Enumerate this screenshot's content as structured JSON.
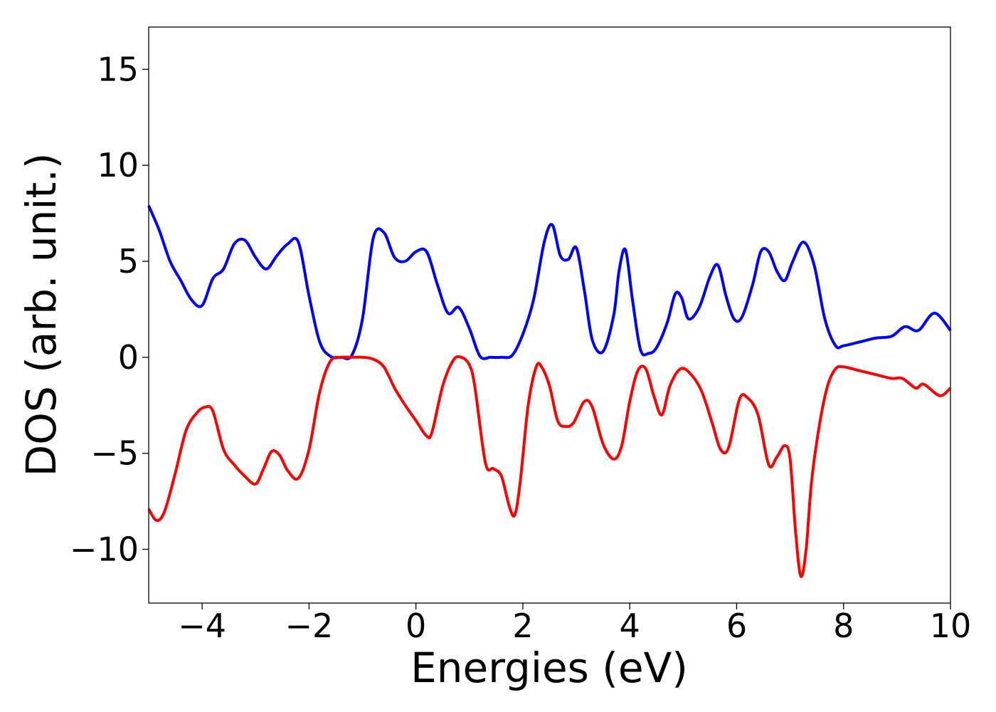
{
  "chart_data": {
    "type": "line",
    "title": "",
    "xlabel": "Energies (eV)",
    "ylabel": "DOS (arb. unit.)",
    "xlim": [
      -5,
      10
    ],
    "ylim": [
      -12.8,
      17.2
    ],
    "xticks": [
      -4,
      -2,
      0,
      2,
      4,
      6,
      8,
      10
    ],
    "yticks": [
      -10,
      -5,
      0,
      5,
      10,
      15
    ],
    "xtick_labels": [
      "−4",
      "−2",
      "0",
      "2",
      "4",
      "6",
      "8",
      "10"
    ],
    "ytick_labels": [
      "−10",
      "−5",
      "0",
      "5",
      "10",
      "15"
    ],
    "grid": false,
    "legend": "none",
    "series": [
      {
        "color": "#0000ff",
        "x": [
          -5.0,
          -4.8,
          -4.6,
          -4.4,
          -4.2,
          -4.0,
          -3.8,
          -3.6,
          -3.4,
          -3.2,
          -3.0,
          -2.8,
          -2.6,
          -2.4,
          -2.2,
          -2.0,
          -1.8,
          -1.6,
          -1.4,
          -1.2,
          -1.0,
          -0.8,
          -0.6,
          -0.4,
          -0.2,
          0.0,
          0.2,
          0.4,
          0.6,
          0.8,
          1.0,
          1.2,
          1.4,
          1.6,
          1.8,
          2.0,
          2.2,
          2.4,
          2.55,
          2.7,
          2.85,
          3.0,
          3.15,
          3.3,
          3.5,
          3.7,
          3.8,
          3.92,
          4.05,
          4.2,
          4.35,
          4.5,
          4.7,
          4.85,
          4.97,
          5.1,
          5.3,
          5.5,
          5.65,
          5.8,
          5.95,
          6.1,
          6.3,
          6.45,
          6.6,
          6.75,
          6.9,
          7.05,
          7.25,
          7.45,
          7.65,
          7.85,
          8.0,
          8.3,
          8.6,
          8.9,
          9.15,
          9.4,
          9.7,
          10.0
        ],
        "y": [
          7.9,
          6.6,
          5.0,
          4.0,
          3.0,
          2.7,
          4.1,
          4.6,
          5.9,
          6.1,
          5.2,
          4.6,
          5.3,
          5.9,
          6.0,
          3.2,
          0.8,
          0.05,
          0.0,
          0.1,
          2.0,
          6.2,
          6.5,
          5.2,
          5.0,
          5.5,
          5.5,
          3.8,
          2.3,
          2.6,
          1.5,
          0.05,
          0.0,
          0.0,
          0.1,
          1.2,
          3.0,
          6.0,
          6.9,
          5.3,
          5.1,
          5.7,
          3.5,
          0.9,
          0.3,
          2.2,
          4.5,
          5.6,
          3.0,
          0.4,
          0.2,
          0.5,
          1.8,
          3.3,
          3.1,
          2.0,
          2.6,
          4.2,
          4.8,
          3.2,
          2.0,
          2.1,
          3.8,
          5.5,
          5.5,
          4.5,
          4.0,
          5.0,
          6.0,
          4.8,
          2.0,
          0.6,
          0.6,
          0.8,
          1.0,
          1.1,
          1.6,
          1.4,
          2.3,
          1.4
        ]
      },
      {
        "color": "#ff0000",
        "x": [
          -5.0,
          -4.85,
          -4.7,
          -4.5,
          -4.3,
          -4.1,
          -3.95,
          -3.8,
          -3.6,
          -3.4,
          -3.2,
          -3.0,
          -2.85,
          -2.7,
          -2.55,
          -2.4,
          -2.2,
          -2.0,
          -1.8,
          -1.6,
          -1.4,
          -1.2,
          -1.0,
          -0.8,
          -0.6,
          -0.4,
          -0.2,
          0.0,
          0.2,
          0.3,
          0.5,
          0.7,
          0.85,
          1.0,
          1.1,
          1.3,
          1.45,
          1.6,
          1.75,
          1.85,
          1.95,
          2.1,
          2.25,
          2.35,
          2.5,
          2.65,
          2.8,
          2.95,
          3.15,
          3.3,
          3.5,
          3.7,
          3.85,
          4.0,
          4.15,
          4.3,
          4.45,
          4.6,
          4.75,
          4.95,
          5.15,
          5.35,
          5.55,
          5.7,
          5.85,
          6.05,
          6.2,
          6.4,
          6.6,
          6.75,
          6.9,
          7.0,
          7.1,
          7.2,
          7.3,
          7.4,
          7.55,
          7.7,
          7.85,
          8.0,
          8.3,
          8.6,
          8.9,
          9.1,
          9.35,
          9.5,
          9.8,
          10.0
        ],
        "y": [
          -7.9,
          -8.5,
          -8.0,
          -6.0,
          -3.8,
          -2.9,
          -2.6,
          -2.8,
          -4.8,
          -5.6,
          -6.2,
          -6.6,
          -5.8,
          -4.9,
          -5.1,
          -5.9,
          -6.3,
          -4.8,
          -1.8,
          -0.2,
          0.0,
          0.0,
          0.0,
          -0.1,
          -0.5,
          -1.6,
          -2.5,
          -3.3,
          -4.1,
          -3.9,
          -1.5,
          -0.15,
          0.0,
          -0.4,
          -1.5,
          -5.5,
          -5.8,
          -6.2,
          -7.8,
          -8.2,
          -6.5,
          -2.5,
          -0.5,
          -0.5,
          -1.5,
          -3.3,
          -3.6,
          -3.4,
          -2.3,
          -2.6,
          -4.5,
          -5.3,
          -4.6,
          -2.3,
          -0.7,
          -0.6,
          -2.0,
          -3.0,
          -1.5,
          -0.6,
          -0.9,
          -1.8,
          -3.5,
          -4.8,
          -4.7,
          -2.2,
          -2.1,
          -3.0,
          -5.6,
          -5.2,
          -4.6,
          -5.3,
          -9.0,
          -11.4,
          -10.0,
          -6.5,
          -3.5,
          -1.5,
          -0.6,
          -0.5,
          -0.7,
          -0.9,
          -1.1,
          -1.1,
          -1.6,
          -1.4,
          -2.0,
          -1.6
        ]
      }
    ]
  }
}
